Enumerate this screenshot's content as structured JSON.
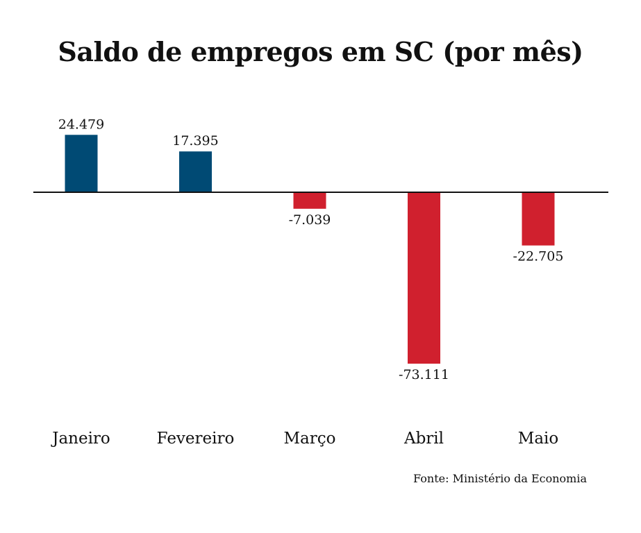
{
  "chart_data": {
    "type": "bar",
    "title": "Saldo de empregos em SC (por mês)",
    "categories": [
      "Janeiro",
      "Fevereiro",
      "Março",
      "Abril",
      "Maio"
    ],
    "values": [
      24479,
      17395,
      -7039,
      -73111,
      -22705
    ],
    "value_labels": [
      "24.479",
      "17.395",
      "-7.039",
      "-73.111",
      "-22.705"
    ],
    "xlabel": "",
    "ylabel": "",
    "ylim": [
      -75000,
      25000
    ],
    "grid": false,
    "legend": "none",
    "colors": {
      "positive": "#004a74",
      "negative": "#d0202e",
      "baseline": "#111111"
    }
  },
  "footer": {
    "source": "Fonte: Ministério da Economia"
  }
}
